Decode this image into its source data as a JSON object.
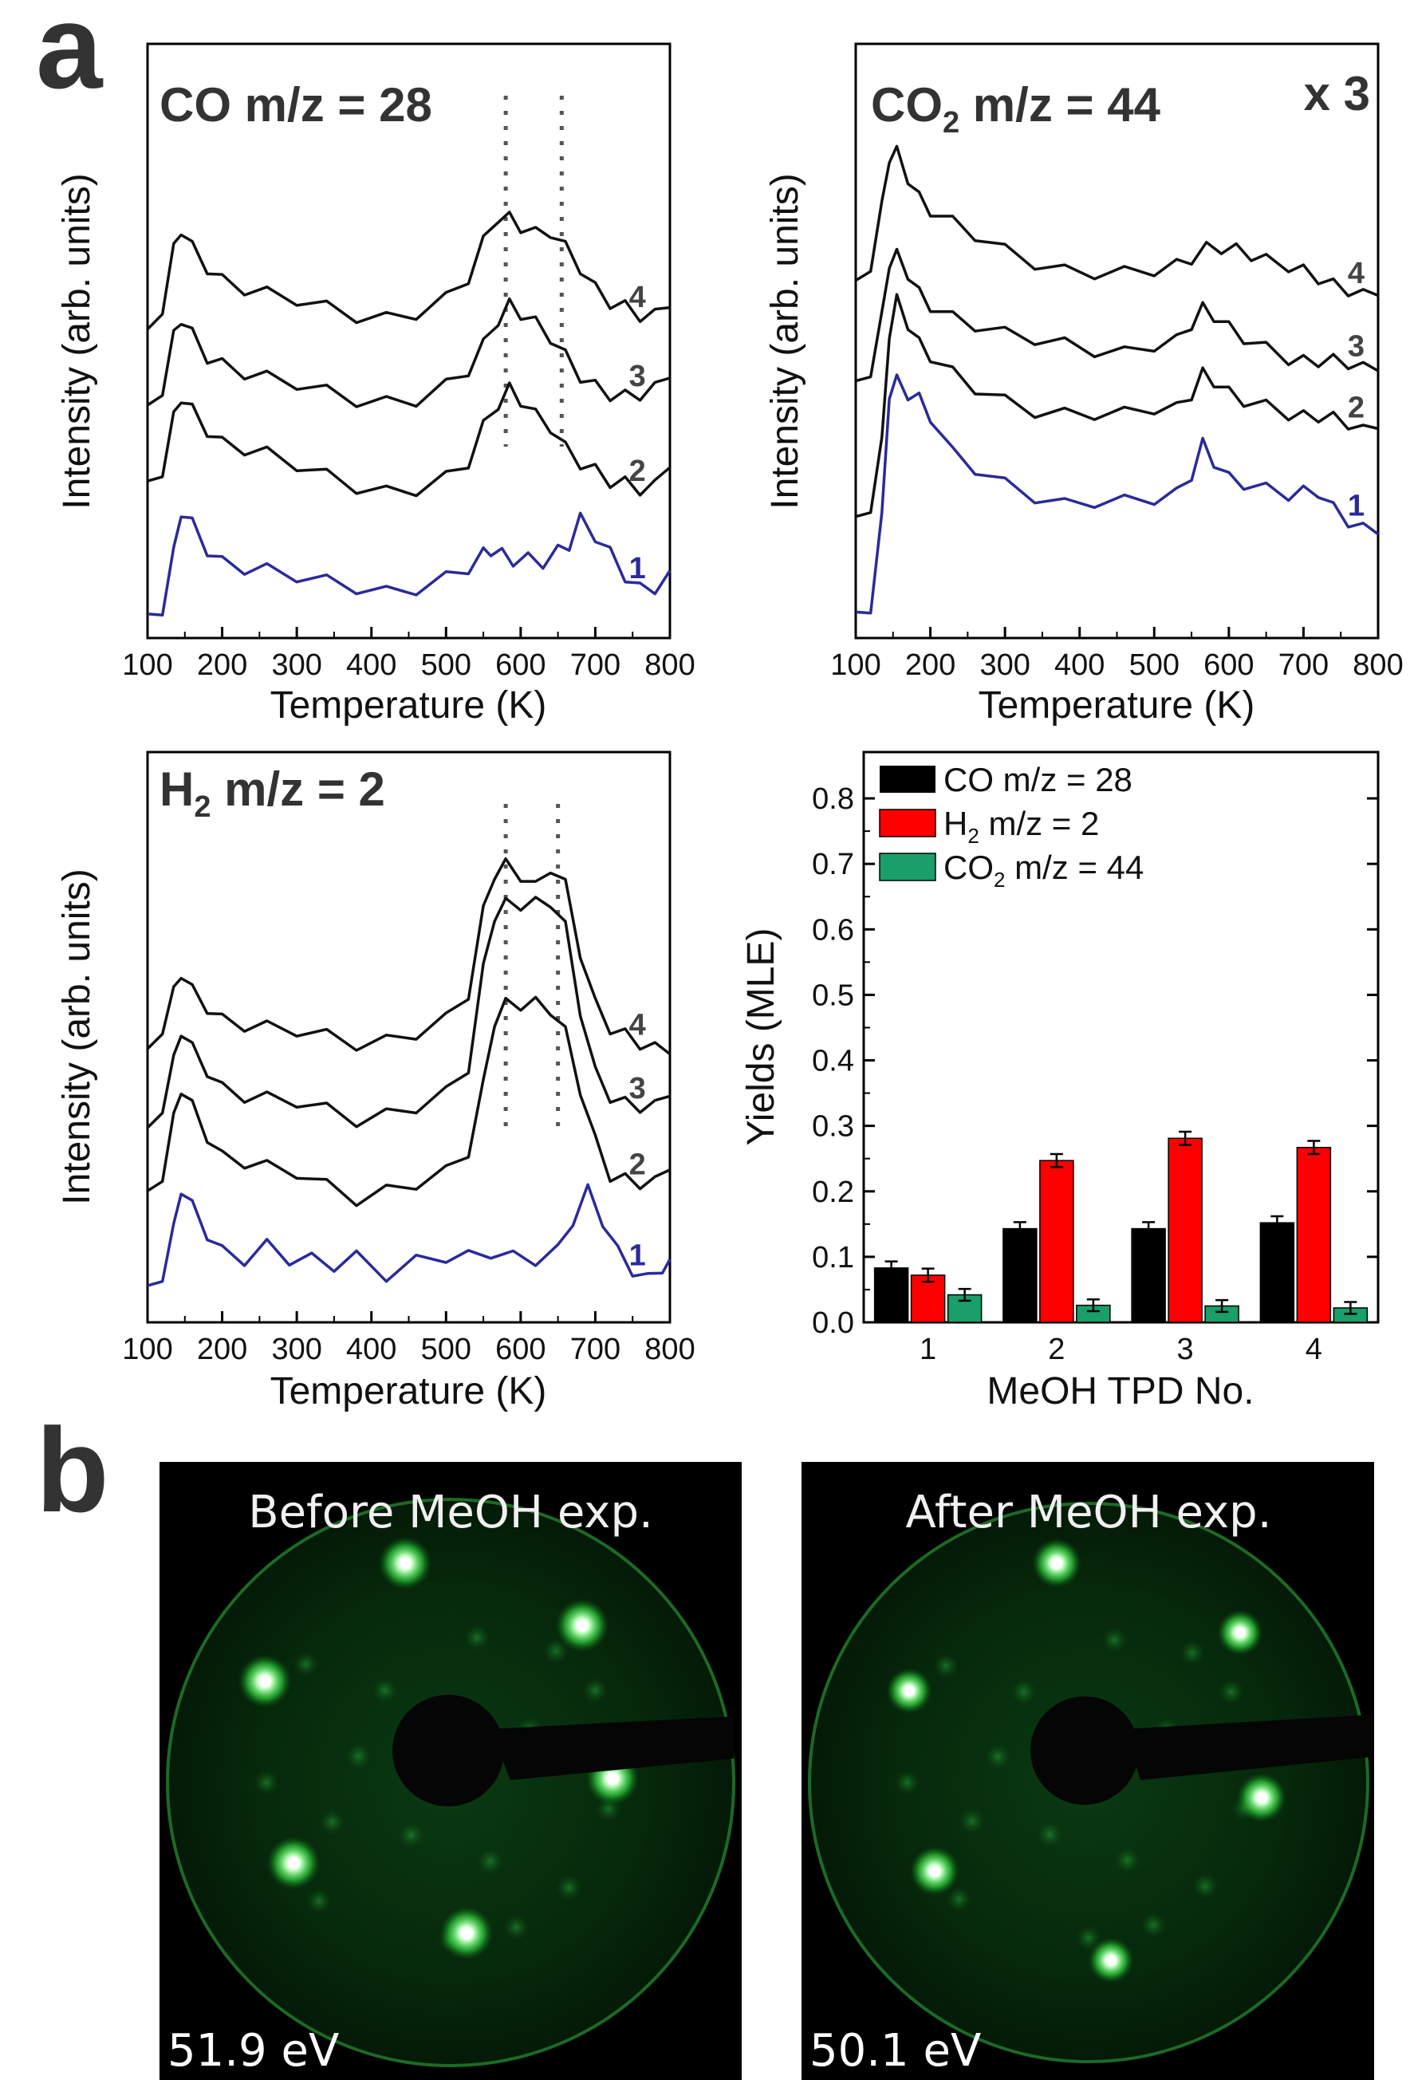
{
  "panel_a_label": "a",
  "panel_b_label": "b",
  "colors": {
    "black_trace": "#111111",
    "blue_trace": "#2a2a9a",
    "co_bar": "#000000",
    "h2_bar": "#ff0000",
    "co2_bar": "#1a9e6a",
    "leed_bg": "#000000",
    "leed_spot": "#aaffaa"
  },
  "chart_data": [
    {
      "id": "co",
      "type": "line",
      "title": "CO m/z = 28",
      "title_main": "CO m/z = 28",
      "xlabel": "Temperature (K)",
      "ylabel": "Intensity (arb. units)",
      "xlim": [
        100,
        800
      ],
      "ylim": [
        0,
        10
      ],
      "xticks": [
        "100",
        "200",
        "300",
        "400",
        "500",
        "600",
        "700",
        "800"
      ],
      "dotted_lines_x": [
        580,
        655
      ],
      "series": [
        {
          "name": "1",
          "color": "#2a2a9a",
          "x": [
            100,
            120,
            135,
            145,
            160,
            180,
            200,
            230,
            260,
            300,
            340,
            380,
            420,
            460,
            500,
            530,
            550,
            560,
            575,
            590,
            610,
            630,
            650,
            665,
            680,
            700,
            720,
            740,
            760,
            780,
            800
          ],
          "y": [
            0.15,
            0.25,
            1.2,
            2.0,
            1.8,
            1.4,
            1.15,
            1.0,
            0.9,
            0.8,
            0.75,
            0.7,
            0.6,
            0.62,
            0.75,
            0.95,
            1.25,
            1.4,
            1.3,
            1.15,
            1.1,
            1.05,
            1.3,
            1.5,
            1.95,
            1.6,
            1.2,
            0.8,
            0.6,
            0.7,
            0.95
          ]
        },
        {
          "name": "2",
          "color": "#111111",
          "x": [
            100,
            120,
            135,
            145,
            160,
            180,
            200,
            230,
            260,
            300,
            340,
            380,
            420,
            460,
            500,
            530,
            550,
            570,
            585,
            600,
            620,
            640,
            660,
            680,
            700,
            720,
            740,
            760,
            780,
            800
          ],
          "y": [
            2.6,
            2.8,
            3.7,
            4.1,
            3.9,
            3.6,
            3.35,
            3.2,
            3.05,
            2.85,
            2.7,
            2.55,
            2.45,
            2.45,
            2.6,
            2.9,
            3.6,
            4.1,
            4.35,
            4.1,
            3.75,
            3.55,
            3.2,
            3.0,
            2.85,
            2.6,
            2.5,
            2.4,
            2.5,
            2.85
          ]
        },
        {
          "name": "3",
          "color": "#111111",
          "x": [
            100,
            120,
            135,
            145,
            160,
            180,
            200,
            230,
            260,
            300,
            340,
            380,
            420,
            460,
            500,
            530,
            550,
            570,
            585,
            600,
            620,
            640,
            660,
            680,
            700,
            720,
            740,
            760,
            780,
            800
          ],
          "y": [
            4.0,
            4.3,
            5.2,
            5.55,
            5.3,
            4.95,
            4.8,
            4.6,
            4.45,
            4.35,
            4.25,
            4.15,
            4.1,
            4.1,
            4.3,
            4.6,
            5.1,
            5.65,
            5.9,
            5.7,
            5.45,
            5.2,
            4.9,
            4.6,
            4.4,
            4.2,
            4.1,
            4.15,
            4.3,
            4.5
          ]
        },
        {
          "name": "4",
          "color": "#111111",
          "x": [
            100,
            120,
            135,
            145,
            160,
            180,
            200,
            230,
            260,
            300,
            340,
            380,
            420,
            460,
            500,
            530,
            550,
            570,
            585,
            600,
            620,
            640,
            660,
            680,
            700,
            720,
            740,
            760,
            780,
            800
          ],
          "y": [
            5.4,
            5.8,
            6.8,
            7.2,
            6.9,
            6.6,
            6.35,
            6.15,
            6.0,
            5.9,
            5.8,
            5.7,
            5.65,
            5.7,
            5.9,
            6.3,
            7.0,
            7.55,
            7.5,
            7.3,
            7.1,
            7.15,
            6.9,
            6.6,
            6.2,
            5.9,
            5.75,
            5.6,
            5.65,
            5.8
          ]
        }
      ],
      "series_labels": [
        "1",
        "2",
        "3",
        "4"
      ]
    },
    {
      "id": "co2",
      "type": "line",
      "title": "CO2 m/z = 44",
      "title_main": "CO",
      "title_sub": "2",
      "title_rest": " m/z = 44",
      "title_multiplier": "x 3",
      "xlabel": "Temperature (K)",
      "ylabel": "Intensity (arb. units)",
      "xlim": [
        100,
        800
      ],
      "ylim": [
        0,
        10
      ],
      "xticks": [
        "100",
        "200",
        "300",
        "400",
        "500",
        "600",
        "700",
        "800"
      ],
      "series": [
        {
          "name": "1",
          "color": "#2a2a9a",
          "x": [
            100,
            120,
            135,
            145,
            155,
            170,
            185,
            200,
            230,
            260,
            300,
            340,
            380,
            420,
            460,
            500,
            530,
            550,
            565,
            580,
            600,
            620,
            650,
            680,
            700,
            720,
            740,
            760,
            780,
            800
          ],
          "y": [
            0.2,
            0.3,
            2.0,
            4.5,
            4.8,
            4.6,
            4.5,
            4.1,
            3.3,
            3.0,
            2.75,
            2.55,
            2.4,
            2.4,
            2.35,
            2.4,
            2.55,
            3.0,
            3.6,
            3.2,
            2.8,
            2.7,
            2.65,
            2.6,
            2.65,
            2.6,
            2.2,
            1.95,
            1.85,
            1.75
          ]
        },
        {
          "name": "2",
          "color": "#111111",
          "x": [
            100,
            120,
            135,
            145,
            155,
            170,
            185,
            200,
            230,
            260,
            300,
            340,
            380,
            420,
            460,
            500,
            530,
            550,
            565,
            580,
            600,
            620,
            650,
            680,
            700,
            720,
            740,
            760,
            780,
            800
          ],
          "y": [
            2.1,
            2.3,
            3.5,
            5.7,
            6.4,
            6.0,
            5.6,
            5.3,
            4.9,
            4.6,
            4.4,
            4.25,
            4.2,
            4.15,
            4.1,
            4.2,
            4.25,
            4.6,
            5.0,
            4.8,
            4.5,
            4.35,
            4.3,
            4.2,
            4.15,
            4.1,
            4.0,
            3.9,
            3.8,
            3.85
          ]
        },
        {
          "name": "3",
          "color": "#111111",
          "x": [
            100,
            120,
            135,
            145,
            155,
            170,
            185,
            200,
            230,
            260,
            300,
            340,
            380,
            420,
            460,
            500,
            530,
            550,
            565,
            580,
            600,
            620,
            650,
            680,
            700,
            720,
            740,
            760,
            780,
            800
          ],
          "y": [
            4.8,
            5.0,
            6.0,
            7.1,
            7.3,
            7.0,
            6.6,
            6.3,
            6.0,
            5.85,
            5.75,
            5.7,
            5.6,
            5.4,
            5.3,
            5.45,
            5.6,
            6.0,
            6.3,
            6.1,
            5.8,
            5.6,
            5.45,
            5.3,
            5.25,
            5.2,
            5.15,
            5.1,
            5.05,
            5.0
          ]
        },
        {
          "name": "4",
          "color": "#111111",
          "x": [
            100,
            120,
            135,
            145,
            155,
            170,
            185,
            200,
            230,
            260,
            300,
            340,
            380,
            420,
            460,
            500,
            530,
            550,
            570,
            590,
            610,
            630,
            650,
            680,
            700,
            720,
            740,
            760,
            780,
            800
          ],
          "y": [
            6.8,
            7.1,
            8.2,
            9.2,
            9.35,
            8.9,
            8.5,
            8.2,
            7.9,
            7.65,
            7.4,
            7.2,
            7.05,
            6.95,
            6.9,
            6.95,
            7.1,
            7.3,
            7.5,
            7.45,
            7.35,
            7.25,
            7.2,
            7.15,
            7.05,
            6.85,
            6.65,
            6.55,
            6.5,
            6.5
          ]
        }
      ],
      "series_labels": [
        "1",
        "2",
        "3",
        "4"
      ]
    },
    {
      "id": "h2",
      "type": "line",
      "title": "H2 m/z = 2",
      "title_main": "H",
      "title_sub": "2",
      "title_rest": " m/z = 2",
      "xlabel": "Temperature (K)",
      "ylabel": "Intensity (arb. units)",
      "xlim": [
        100,
        800
      ],
      "ylim": [
        0,
        10
      ],
      "xticks": [
        "100",
        "200",
        "300",
        "400",
        "500",
        "600",
        "700",
        "800"
      ],
      "dotted_lines_x": [
        580,
        650
      ],
      "series": [
        {
          "name": "1",
          "color": "#2a2a9a",
          "x": [
            100,
            120,
            135,
            145,
            160,
            180,
            200,
            230,
            260,
            290,
            320,
            350,
            380,
            420,
            460,
            500,
            530,
            560,
            590,
            620,
            650,
            670,
            690,
            710,
            730,
            750,
            770,
            790,
            800
          ],
          "y": [
            0.5,
            0.7,
            1.5,
            2.3,
            2.0,
            1.55,
            1.2,
            1.0,
            1.2,
            0.95,
            1.0,
            0.95,
            1.1,
            0.7,
            0.9,
            1.0,
            1.05,
            1.2,
            1.1,
            1.0,
            1.1,
            1.7,
            2.3,
            1.8,
            1.2,
            0.8,
            0.55,
            0.8,
            1.0
          ]
        },
        {
          "name": "2",
          "color": "#111111",
          "x": [
            100,
            120,
            135,
            145,
            160,
            180,
            200,
            230,
            260,
            300,
            340,
            380,
            420,
            460,
            500,
            530,
            550,
            565,
            580,
            600,
            620,
            640,
            660,
            680,
            700,
            720,
            740,
            760,
            780,
            800
          ],
          "y": [
            2.3,
            2.6,
            3.6,
            4.2,
            3.9,
            3.4,
            3.0,
            2.85,
            2.7,
            2.6,
            2.4,
            2.2,
            2.35,
            2.45,
            2.6,
            3.0,
            4.3,
            5.6,
            5.9,
            5.85,
            5.8,
            5.7,
            5.3,
            4.3,
            3.3,
            2.6,
            2.45,
            2.4,
            2.45,
            2.7
          ]
        },
        {
          "name": "3",
          "color": "#111111",
          "x": [
            100,
            120,
            135,
            145,
            160,
            180,
            200,
            230,
            260,
            300,
            340,
            380,
            420,
            460,
            500,
            530,
            550,
            565,
            580,
            600,
            620,
            640,
            660,
            680,
            700,
            720,
            740,
            760,
            780,
            800
          ],
          "y": [
            3.5,
            3.9,
            4.7,
            5.3,
            5.0,
            4.65,
            4.3,
            4.1,
            4.0,
            3.95,
            3.85,
            3.7,
            3.8,
            3.9,
            4.1,
            4.6,
            6.5,
            7.6,
            7.8,
            7.75,
            7.7,
            7.75,
            7.3,
            5.8,
            4.6,
            4.1,
            3.9,
            3.85,
            3.9,
            4.1
          ]
        },
        {
          "name": "4",
          "color": "#111111",
          "x": [
            100,
            120,
            135,
            145,
            160,
            180,
            200,
            230,
            260,
            300,
            340,
            380,
            420,
            460,
            500,
            530,
            550,
            565,
            580,
            600,
            620,
            640,
            660,
            680,
            700,
            720,
            740,
            760,
            780,
            800
          ],
          "y": [
            5.0,
            5.4,
            6.0,
            6.4,
            6.1,
            5.85,
            5.6,
            5.45,
            5.35,
            5.3,
            5.25,
            5.15,
            5.2,
            5.3,
            5.5,
            6.0,
            7.6,
            8.4,
            8.55,
            8.3,
            8.0,
            8.4,
            8.1,
            6.9,
            5.9,
            5.4,
            5.2,
            5.05,
            5.0,
            4.9
          ]
        }
      ],
      "series_labels": [
        "1",
        "2",
        "3",
        "4"
      ]
    },
    {
      "id": "yields",
      "type": "bar",
      "xlabel": "MeOH TPD No.",
      "ylabel": "Yields (MLE)",
      "ylim": [
        0,
        0.85
      ],
      "yticks": [
        "0.0",
        "0.1",
        "0.2",
        "0.3",
        "0.4",
        "0.5",
        "0.6",
        "0.7",
        "0.8"
      ],
      "categories": [
        "1",
        "2",
        "3",
        "4"
      ],
      "series": [
        {
          "name": "CO m/z = 28",
          "legend_main": "CO m/z = 28",
          "legend_sub": "",
          "legend_rest": "",
          "color": "#000000",
          "values": [
            0.083,
            0.143,
            0.143,
            0.152
          ],
          "errors": [
            0.01,
            0.01,
            0.01,
            0.01
          ]
        },
        {
          "name": "H2 m/z = 2",
          "legend_main": "H",
          "legend_sub": "2",
          "legend_rest": " m/z = 2",
          "color": "#ff0000",
          "values": [
            0.072,
            0.247,
            0.281,
            0.267
          ],
          "errors": [
            0.01,
            0.01,
            0.01,
            0.01
          ]
        },
        {
          "name": "CO2 m/z = 44",
          "legend_main": "CO",
          "legend_sub": "2",
          "legend_rest": " m/z = 44",
          "color": "#1a9e6a",
          "values": [
            0.042,
            0.026,
            0.025,
            0.022
          ],
          "errors": [
            0.009,
            0.009,
            0.009,
            0.009
          ]
        }
      ]
    }
  ],
  "leed": [
    {
      "title": "Before MeOH exp.",
      "energy": "51.9 eV"
    },
    {
      "title": "After MeOH exp.",
      "energy": "50.1 eV"
    }
  ]
}
